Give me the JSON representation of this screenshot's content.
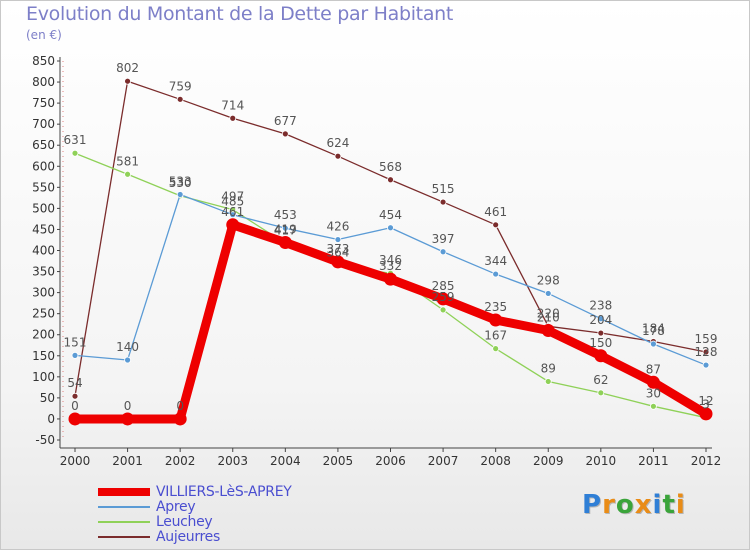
{
  "header": {
    "title": "Evolution du Montant de la Dette par Habitant",
    "unit": "(en €)"
  },
  "logo": {
    "letters": [
      "P",
      "r",
      "o",
      "x",
      "i",
      "t",
      "i"
    ],
    "colors": [
      "#2f7fd6",
      "#e98c17",
      "#3aa43a",
      "#e98c17",
      "#2f7fd6",
      "#3aa43a",
      "#e98c17"
    ]
  },
  "chart_data": {
    "type": "line",
    "x": [
      "2000",
      "2001",
      "2002",
      "2003",
      "2004",
      "2005",
      "2006",
      "2007",
      "2008",
      "2009",
      "2010",
      "2011",
      "2012"
    ],
    "ylim": [
      -50,
      850
    ],
    "yticks": [
      -50,
      0,
      50,
      100,
      150,
      200,
      250,
      300,
      350,
      400,
      450,
      500,
      550,
      600,
      650,
      700,
      750,
      800,
      850
    ],
    "grid": false,
    "legend_position": "bottom-left",
    "series": [
      {
        "name": "VILLIERS-LèS-APREY",
        "color": "#ee0000",
        "values": [
          0,
          0,
          0,
          461,
          419,
          373,
          332,
          285,
          235,
          210,
          150,
          87,
          12
        ],
        "labels": [
          "0",
          "0",
          "0",
          "461",
          "419",
          "373",
          "332",
          "285",
          "235",
          "210",
          "150",
          "87",
          "12"
        ]
      },
      {
        "name": "Aprey",
        "color": "#5b9bd5",
        "values": [
          151,
          140,
          533,
          485,
          453,
          426,
          454,
          397,
          344,
          298,
          238,
          178,
          128
        ],
        "labels": [
          "151",
          "140",
          "533",
          "485",
          "453",
          "426",
          "454",
          "397",
          "344",
          "298",
          "238",
          "178",
          "128"
        ]
      },
      {
        "name": "Leuchey",
        "color": "#8fd158",
        "values": [
          631,
          581,
          530,
          497,
          417,
          364,
          346,
          259,
          167,
          89,
          62,
          30,
          3
        ],
        "labels": [
          "631",
          "581",
          "530",
          "497",
          "417",
          "364",
          "346",
          "259",
          "167",
          "89",
          "62",
          "30",
          "3"
        ]
      },
      {
        "name": "Aujeurres",
        "color": "#7b2c2c",
        "values": [
          54,
          802,
          759,
          714,
          677,
          624,
          568,
          515,
          461,
          220,
          204,
          184,
          159
        ],
        "labels": [
          "54",
          "802",
          "759",
          "714",
          "677",
          "624",
          "568",
          "515",
          "461",
          "220",
          "204",
          "184",
          "159"
        ]
      }
    ]
  }
}
